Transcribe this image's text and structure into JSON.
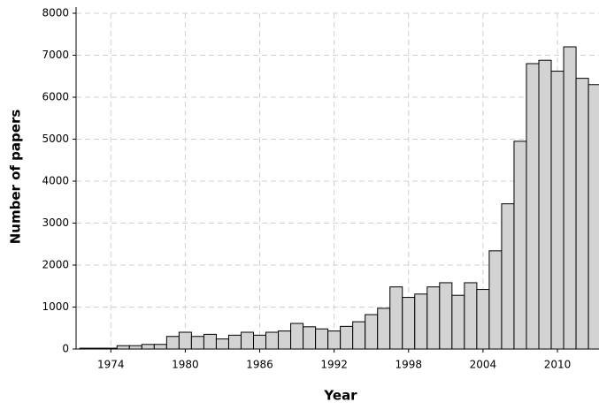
{
  "chart_data": {
    "type": "histogram",
    "x_label": "Year",
    "y_label": "Number of papers",
    "bins": [
      1971.5,
      1972.5,
      1973.5,
      1974.5,
      1975.5,
      1976.5,
      1977.5,
      1978.5,
      1979.5,
      1980.5,
      1981.5,
      1982.5,
      1983.5,
      1984.5,
      1985.5,
      1986.5,
      1987.5,
      1988.5,
      1989.5,
      1990.5,
      1991.5,
      1992.5,
      1993.5,
      1994.5,
      1995.5,
      1996.5,
      1997.5,
      1998.5,
      1999.5,
      2000.5,
      2001.5,
      2002.5,
      2003.5,
      2004.5,
      2005.5,
      2006.5,
      2007.5,
      2008.5,
      2009.5,
      2010.5,
      2011.5,
      2012.5,
      2013.5
    ],
    "values": [
      20,
      20,
      20,
      80,
      80,
      110,
      110,
      300,
      400,
      300,
      350,
      240,
      330,
      400,
      330,
      400,
      430,
      610,
      530,
      480,
      430,
      540,
      650,
      820,
      970,
      1480,
      1230,
      1310,
      1480,
      1580,
      1280,
      1580,
      1420,
      2340,
      3460,
      4950,
      6800,
      6880,
      6620,
      7200,
      6450,
      6300
    ],
    "color": "#d3d3d3",
    "xlim": [
      1971.2,
      2013.35
    ],
    "xticks": [
      1974,
      1980,
      1986,
      1992,
      1998,
      2004,
      2010
    ],
    "ylim": [
      0,
      8000
    ],
    "yticks": [
      0,
      1000,
      2000,
      3000,
      4000,
      5000,
      6000,
      7000,
      8000
    ],
    "grid": true
  }
}
